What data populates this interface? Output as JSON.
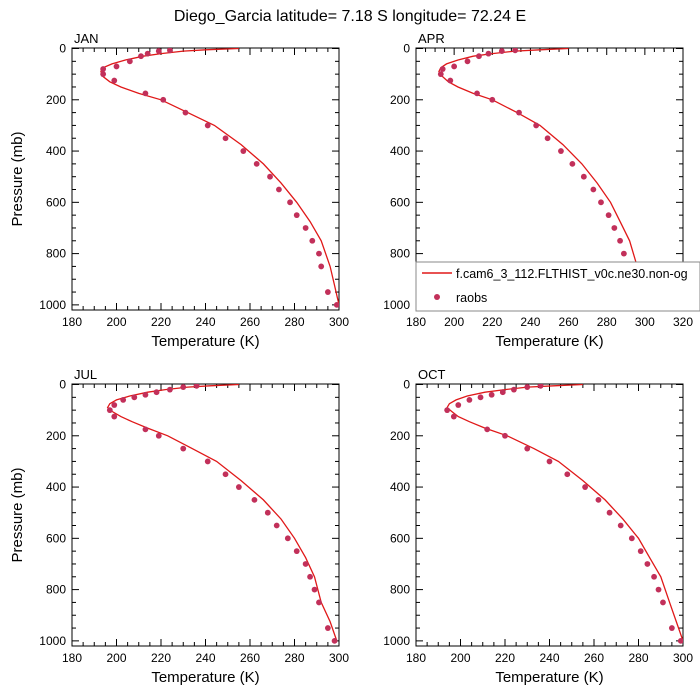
{
  "title": "Diego_Garcia  latitude= 7.18 S longitude= 72.24 E",
  "colors": {
    "model_line": "#e01818",
    "obs_marker": "#c2305a",
    "axis": "#000000"
  },
  "legend": {
    "model_label": "f.cam6_3_112.FLTHIST_v0c.ne30.non-og",
    "obs_label": "raobs",
    "placement": "lower-right of APR panel"
  },
  "chart_data": [
    {
      "type": "line+scatter",
      "panel": "JAN",
      "xlabel": "Temperature (K)",
      "ylabel": "Pressure (mb)",
      "xlim": [
        180,
        300
      ],
      "ylim": [
        1020,
        -2
      ],
      "xticks": [
        180,
        200,
        220,
        240,
        260,
        280,
        300
      ],
      "yticks": [
        0,
        200,
        400,
        600,
        800,
        1000
      ],
      "model": {
        "x": [
          255,
          240,
          230,
          220,
          212,
          204,
          198,
          194,
          193,
          194,
          197,
          202,
          210,
          220,
          232,
          244,
          256,
          266,
          274,
          281,
          287,
          292,
          296,
          298,
          300
        ],
        "y": [
          0,
          5,
          10,
          20,
          30,
          45,
          60,
          75,
          90,
          110,
          130,
          150,
          175,
          200,
          250,
          300,
          375,
          450,
          525,
          600,
          675,
          750,
          850,
          925,
          1000
        ]
      },
      "obs": {
        "x": [
          224,
          219,
          214,
          211,
          206,
          200,
          194,
          194,
          199,
          213,
          221,
          231,
          241,
          249,
          257,
          263,
          269,
          273,
          278,
          281,
          285,
          288,
          291,
          292,
          295,
          299
        ],
        "y": [
          7,
          10,
          20,
          30,
          50,
          70,
          80,
          100,
          125,
          175,
          200,
          250,
          300,
          350,
          400,
          450,
          500,
          550,
          600,
          650,
          700,
          750,
          800,
          850,
          950,
          1000
        ]
      }
    },
    {
      "type": "line+scatter",
      "panel": "APR",
      "xlabel": "Temperature (K)",
      "ylabel": "",
      "xlim": [
        180,
        320
      ],
      "ylim": [
        1020,
        -2
      ],
      "xticks": [
        180,
        200,
        220,
        240,
        260,
        280,
        300,
        320
      ],
      "yticks": [
        0,
        200,
        400,
        600,
        800,
        1000
      ],
      "model": {
        "x": [
          260,
          245,
          232,
          220,
          210,
          202,
          196,
          193,
          192,
          194,
          197,
          202,
          210,
          220,
          233,
          245,
          257,
          267,
          275,
          282,
          287,
          292,
          296,
          299,
          302
        ],
        "y": [
          0,
          5,
          10,
          20,
          30,
          45,
          60,
          75,
          90,
          110,
          130,
          150,
          175,
          200,
          250,
          300,
          375,
          450,
          525,
          600,
          675,
          750,
          850,
          925,
          1000
        ]
      },
      "obs": {
        "x": [
          232,
          225,
          218,
          213,
          207,
          200,
          194,
          193,
          198,
          212,
          220,
          234,
          243,
          249,
          256,
          262,
          268,
          273,
          277,
          281,
          284,
          287,
          289,
          291,
          294,
          300
        ],
        "y": [
          7,
          10,
          20,
          30,
          50,
          70,
          80,
          100,
          125,
          175,
          200,
          250,
          300,
          350,
          400,
          450,
          500,
          550,
          600,
          650,
          700,
          750,
          800,
          850,
          950,
          1000
        ]
      }
    },
    {
      "type": "line+scatter",
      "panel": "JUL",
      "xlabel": "Temperature (K)",
      "ylabel": "Pressure (mb)",
      "xlim": [
        180,
        300
      ],
      "ylim": [
        1020,
        -2
      ],
      "xticks": [
        180,
        200,
        220,
        240,
        260,
        280,
        300
      ],
      "yticks": [
        0,
        200,
        400,
        600,
        800,
        1000
      ],
      "model": {
        "x": [
          255,
          242,
          232,
          222,
          214,
          206,
          200,
          197,
          196,
          198,
          202,
          207,
          214,
          223,
          234,
          245,
          256,
          266,
          274,
          280,
          285,
          289,
          292,
          296,
          299
        ],
        "y": [
          0,
          5,
          10,
          20,
          30,
          45,
          60,
          75,
          90,
          105,
          125,
          145,
          170,
          200,
          250,
          300,
          375,
          450,
          525,
          600,
          675,
          750,
          850,
          925,
          1000
        ]
      },
      "obs": {
        "x": [
          236,
          230,
          224,
          218,
          213,
          208,
          203,
          199,
          197,
          199,
          213,
          219,
          230,
          241,
          249,
          255,
          262,
          268,
          272,
          277,
          281,
          285,
          287,
          289,
          291,
          295,
          298
        ],
        "y": [
          5,
          10,
          20,
          30,
          40,
          50,
          60,
          80,
          100,
          125,
          175,
          200,
          250,
          300,
          350,
          400,
          450,
          500,
          550,
          600,
          650,
          700,
          750,
          800,
          850,
          950,
          1000
        ]
      }
    },
    {
      "type": "line+scatter",
      "panel": "OCT",
      "xlabel": "Temperature (K)",
      "ylabel": "",
      "xlim": [
        180,
        300
      ],
      "ylim": [
        1020,
        -2
      ],
      "xticks": [
        180,
        200,
        220,
        240,
        260,
        280,
        300
      ],
      "yticks": [
        0,
        200,
        400,
        600,
        800,
        1000
      ],
      "model": {
        "x": [
          255,
          242,
          230,
          220,
          211,
          203,
          198,
          195,
          194,
          196,
          199,
          204,
          211,
          221,
          233,
          244,
          255,
          265,
          273,
          280,
          285,
          290,
          294,
          297,
          300
        ],
        "y": [
          0,
          5,
          10,
          20,
          30,
          45,
          60,
          75,
          90,
          105,
          125,
          145,
          170,
          200,
          250,
          300,
          375,
          450,
          525,
          600,
          675,
          750,
          850,
          925,
          1000
        ]
      },
      "obs": {
        "x": [
          236,
          230,
          224,
          219,
          214,
          209,
          204,
          199,
          194,
          197,
          212,
          220,
          230,
          240,
          248,
          256,
          262,
          267,
          272,
          277,
          281,
          284,
          287,
          289,
          291,
          295,
          299
        ],
        "y": [
          5,
          10,
          20,
          30,
          40,
          50,
          60,
          80,
          100,
          125,
          175,
          200,
          250,
          300,
          350,
          400,
          450,
          500,
          550,
          600,
          650,
          700,
          750,
          800,
          850,
          950,
          1000
        ]
      }
    }
  ]
}
